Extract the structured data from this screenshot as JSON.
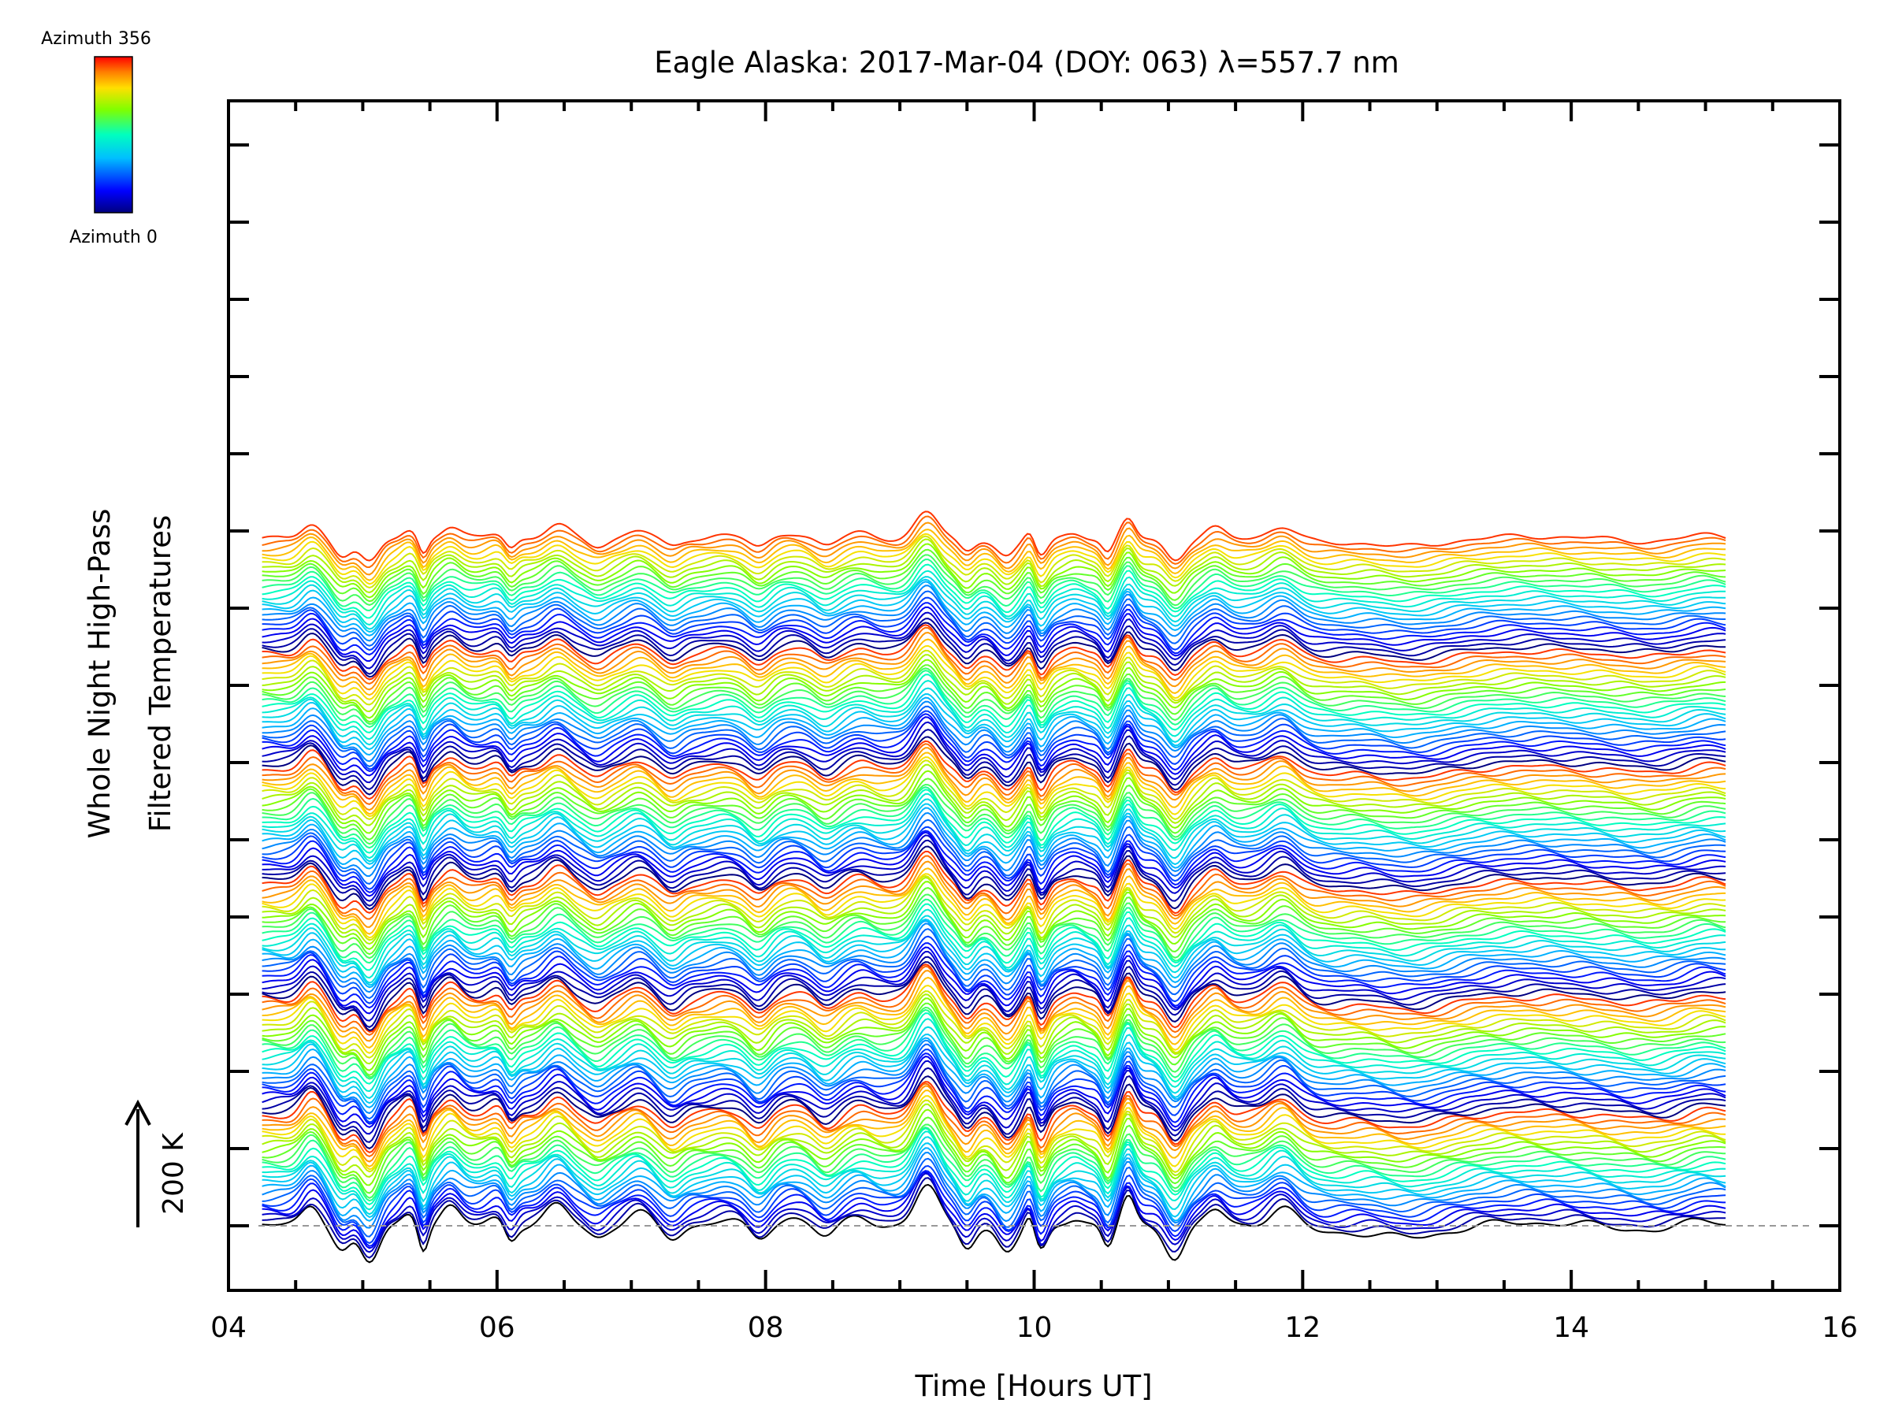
{
  "chart_data": {
    "type": "line",
    "title": "Eagle Alaska: 2017-Mar-04 (DOY: 063) λ=557.7 nm",
    "xlabel": "Time [Hours UT]",
    "ylabel_line1": "Whole Night High-Pass",
    "ylabel_line2": "Filtered Temperatures",
    "xlim": [
      4,
      16
    ],
    "x_ticks": [
      "04",
      "06",
      "08",
      "10",
      "12",
      "14",
      "16"
    ],
    "x_data_range": [
      4.25,
      15.15
    ],
    "series_count": 144,
    "series_offset_label": "200 K",
    "colorbar": {
      "label_top": "Azimuth 356",
      "label_bottom": "Azimuth 0",
      "colormap": "rainbow",
      "colors": [
        "#000080",
        "#0000ff",
        "#00bfff",
        "#00ffbf",
        "#7fff00",
        "#ffdf00",
        "#ff8000",
        "#ff0000"
      ]
    },
    "baseline_style": "dashed-gray"
  }
}
